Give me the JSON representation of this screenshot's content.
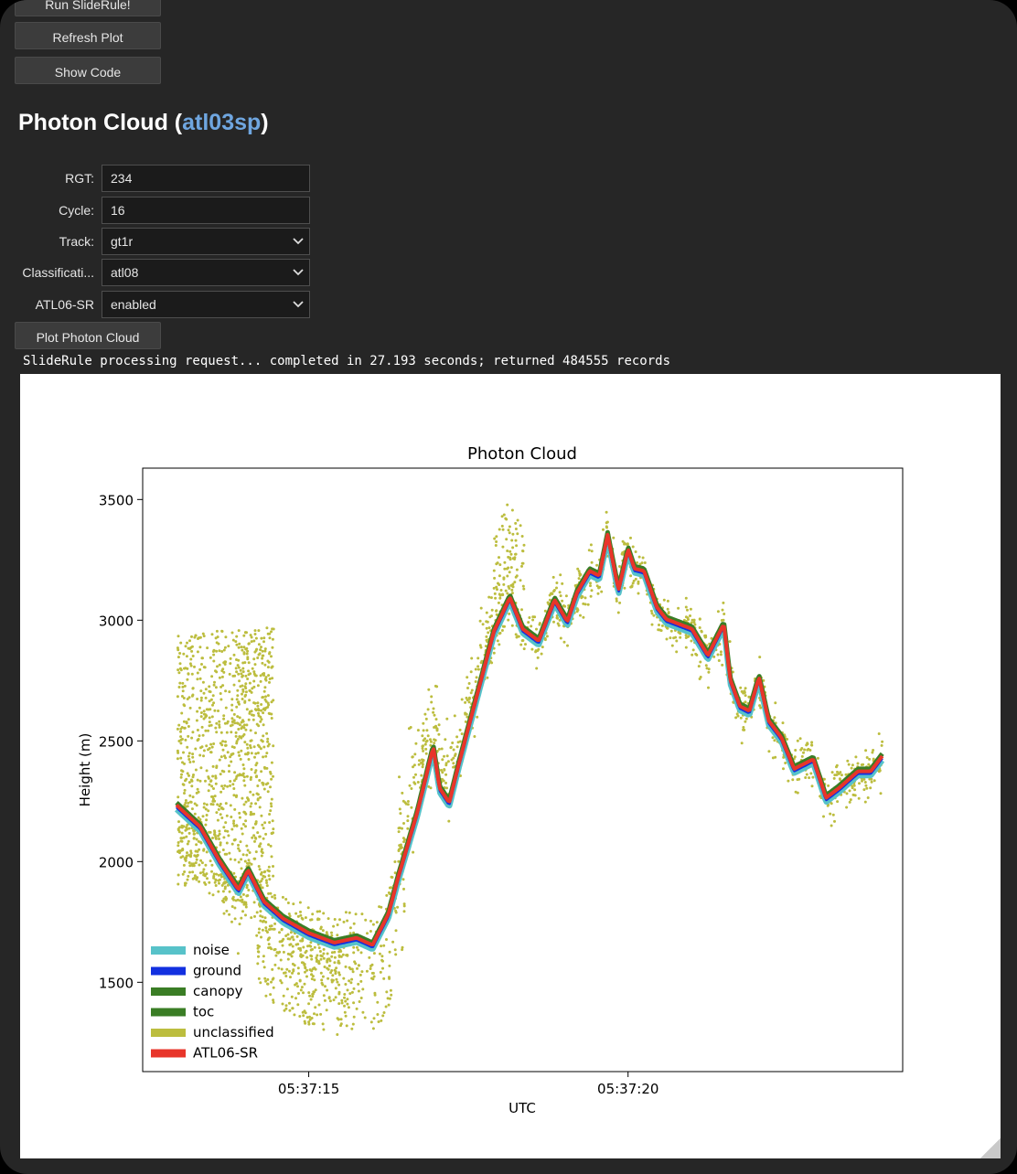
{
  "toolbar": {
    "run_label": "Run SlideRule!",
    "refresh_label": "Refresh Plot",
    "show_code_label": "Show Code"
  },
  "heading": {
    "prefix": "Photon Cloud (",
    "api": "atl03sp",
    "suffix": ")"
  },
  "form": {
    "rgt": {
      "label": "RGT:",
      "value": "234"
    },
    "cycle": {
      "label": "Cycle:",
      "value": "16"
    },
    "track": {
      "label": "Track:",
      "value": "gt1r"
    },
    "classification": {
      "label": "Classificati...",
      "value": "atl08"
    },
    "atl06sr": {
      "label": "ATL06-SR",
      "value": "enabled"
    },
    "plot_button": "Plot Photon Cloud"
  },
  "status_text": "SlideRule processing request... completed in 27.193 seconds; returned 484555 records",
  "colors": {
    "window_bg": "#262626",
    "accent": "#6fa6e0"
  },
  "chart_data": {
    "type": "scatter",
    "title": "Photon Cloud",
    "xlabel": "UTC",
    "ylabel": "Height (m)",
    "xlim": [
      12.4,
      24.3
    ],
    "ylim": [
      1130,
      3630
    ],
    "yticks": [
      1500,
      2000,
      2500,
      3000,
      3500
    ],
    "xticks": [
      {
        "value": 15,
        "label": "05:37:15"
      },
      {
        "value": 20,
        "label": "05:37:20"
      }
    ],
    "grid": false,
    "legend_position": "lower-left",
    "series": [
      {
        "name": "noise",
        "color": "#57c2c9"
      },
      {
        "name": "ground",
        "color": "#1230e0"
      },
      {
        "name": "canopy",
        "color": "#3a7d25"
      },
      {
        "name": "toc",
        "color": "#3a7d25"
      },
      {
        "name": "unclassified",
        "color": "#bcbd3e"
      },
      {
        "name": "ATL06-SR",
        "color": "#e8352a"
      }
    ],
    "surface_profile": {
      "x": [
        12.93,
        13.3,
        13.6,
        13.9,
        14.05,
        14.3,
        14.6,
        15.0,
        15.4,
        15.75,
        16.0,
        16.25,
        16.4,
        16.7,
        16.95,
        17.05,
        17.2,
        17.35,
        17.55,
        17.7,
        17.9,
        18.15,
        18.35,
        18.6,
        18.85,
        19.05,
        19.2,
        19.4,
        19.55,
        19.68,
        19.85,
        20.0,
        20.1,
        20.25,
        20.45,
        20.6,
        20.8,
        21.0,
        21.25,
        21.5,
        21.6,
        21.75,
        21.9,
        22.05,
        22.2,
        22.4,
        22.6,
        22.9,
        23.1,
        23.3,
        23.6,
        23.8,
        24.0
      ],
      "y": [
        2230,
        2140,
        2000,
        1880,
        1960,
        1830,
        1760,
        1700,
        1660,
        1680,
        1650,
        1780,
        1930,
        2200,
        2470,
        2300,
        2240,
        2400,
        2600,
        2750,
        2950,
        3090,
        2960,
        2910,
        3080,
        2990,
        3110,
        3200,
        3180,
        3350,
        3120,
        3290,
        3210,
        3200,
        3050,
        3000,
        2980,
        2960,
        2850,
        2980,
        2750,
        2640,
        2620,
        2760,
        2580,
        2510,
        2380,
        2420,
        2260,
        2300,
        2370,
        2370,
        2440
      ]
    }
  }
}
